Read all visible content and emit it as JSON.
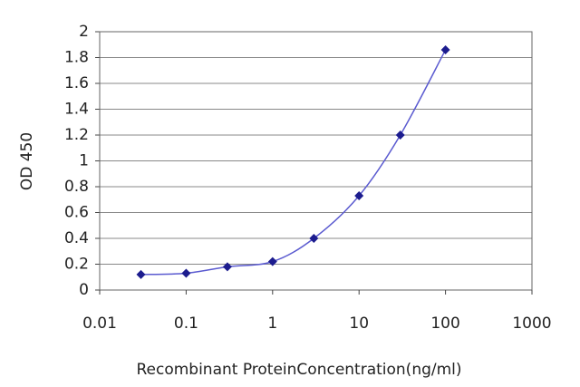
{
  "chart_data": {
    "type": "line",
    "x_label": "Recombinant ProteinConcentration(ng/ml)",
    "y_label": "OD 450",
    "x": [
      0.03,
      0.1,
      0.3,
      1,
      3,
      10,
      30,
      100
    ],
    "series": [
      {
        "color": "#1c1c8e",
        "values": [
          0.12,
          0.13,
          0.18,
          0.22,
          0.4,
          0.73,
          1.2,
          1.86
        ]
      }
    ],
    "xscale": "log",
    "xlim": [
      0.01,
      1000
    ],
    "xticks": [
      0.01,
      0.1,
      1,
      10,
      100,
      1000
    ],
    "ylim": [
      0,
      2
    ],
    "yticks": [
      0,
      0.2,
      0.4,
      0.6,
      0.8,
      1,
      1.2,
      1.4,
      1.6,
      1.8,
      2
    ],
    "grid": true
  }
}
